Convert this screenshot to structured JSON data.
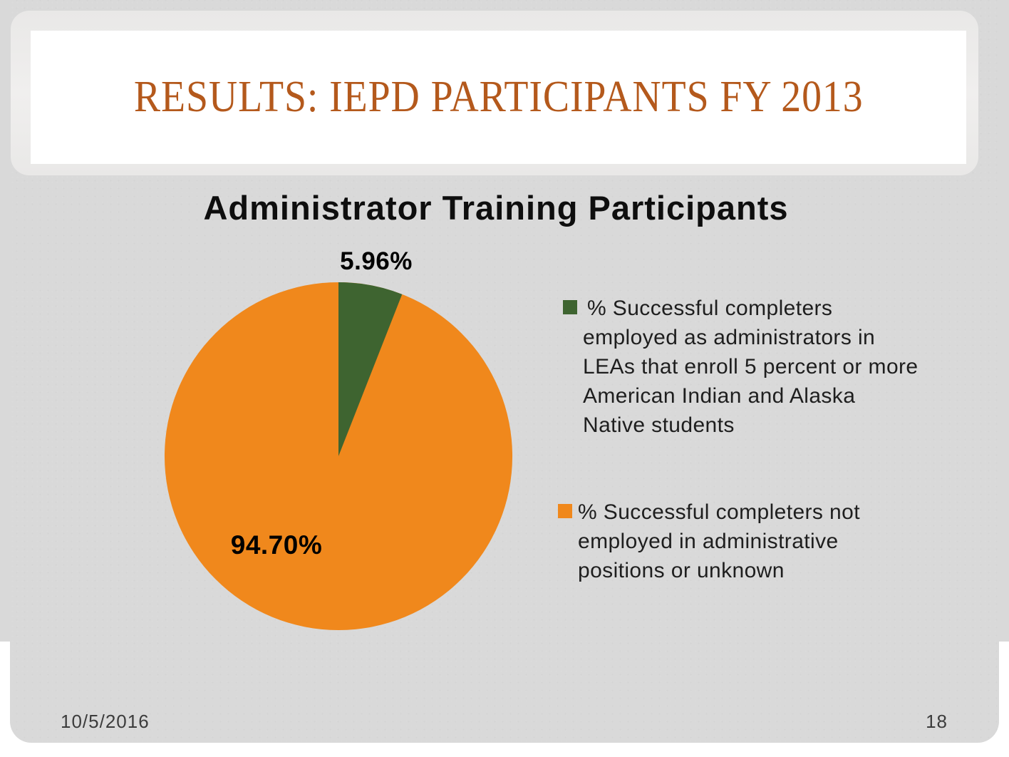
{
  "slide": {
    "title": "RESULTS: IEPD PARTICIPANTS FY 2013",
    "title_color": "#B4591C",
    "background_color": "#D9D9D9",
    "footer": {
      "date": "10/5/2016",
      "page_number": "18"
    }
  },
  "chart_data": {
    "type": "pie",
    "title": "Administrator Training Participants",
    "slices": [
      {
        "label": "% Successful completers employed as administrators in LEAs that enroll 5 percent or more American Indian and Alaska Native students",
        "value": 5.96,
        "display": "5.96%",
        "color": "#3E6430"
      },
      {
        "label": "% Successful completers not employed in administrative positions or unknown",
        "value": 94.7,
        "display": "94.70%",
        "color": "#F0881C"
      }
    ],
    "start_angle_deg": 0,
    "direction": "clockwise",
    "legend_position": "right",
    "data_labels_shown": true
  }
}
